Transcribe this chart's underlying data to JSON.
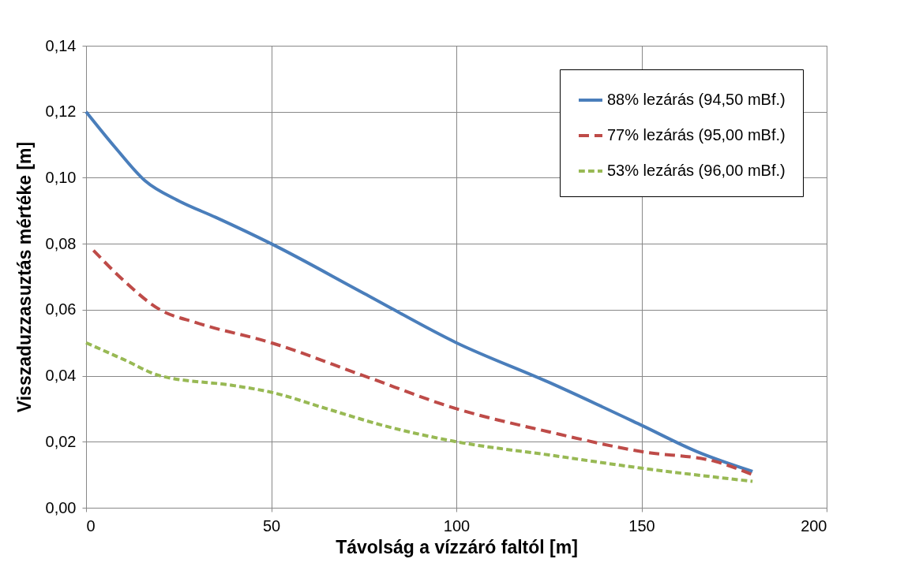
{
  "chart_data": {
    "type": "line",
    "xlabel": "Távolság a vízzáró faltól [m]",
    "ylabel": "Visszaduzzasuztás mértéke [m]",
    "xlim": [
      0,
      200
    ],
    "xticks": [
      0,
      50,
      100,
      150,
      200
    ],
    "ylim": [
      0,
      0.14
    ],
    "yticks": [
      {
        "value": 0,
        "label": "0,00"
      },
      {
        "value": 0.02,
        "label": "0,02"
      },
      {
        "value": 0.04,
        "label": "0,04"
      },
      {
        "value": 0.06,
        "label": "0,06"
      },
      {
        "value": 0.08,
        "label": "0,08"
      },
      {
        "value": 0.1,
        "label": "0,10"
      },
      {
        "value": 0.12,
        "label": "0,12"
      },
      {
        "value": 0.14,
        "label": "0,14"
      }
    ],
    "grid": true,
    "legend": "top right",
    "marker": "none",
    "series": [
      {
        "name": "88% lezárás (94,50 mBf.)",
        "color": "#4a7ebb",
        "line_style": "solid",
        "x": [
          0,
          8,
          16,
          25,
          35,
          50,
          75,
          100,
          125,
          150,
          165,
          180
        ],
        "values": [
          0.12,
          0.109,
          0.099,
          0.093,
          0.088,
          0.08,
          0.065,
          0.05,
          0.038,
          0.025,
          0.017,
          0.011
        ]
      },
      {
        "name": "77% lezárás (95,00 mBf.)",
        "color": "#be4b48",
        "line_style": "dashed",
        "x": [
          2,
          10,
          20,
          30,
          50,
          75,
          100,
          125,
          150,
          170,
          180
        ],
        "values": [
          0.078,
          0.069,
          0.06,
          0.056,
          0.05,
          0.04,
          0.03,
          0.023,
          0.017,
          0.014,
          0.01
        ]
      },
      {
        "name": "53% lezárás (96,00 mBf.)",
        "color": "#98b954",
        "line_style": "dashed",
        "x": [
          0,
          10,
          20,
          40,
          50,
          65,
          80,
          100,
          125,
          150,
          180
        ],
        "values": [
          0.05,
          0.045,
          0.04,
          0.037,
          0.035,
          0.03,
          0.025,
          0.02,
          0.016,
          0.012,
          0.008
        ]
      }
    ]
  }
}
